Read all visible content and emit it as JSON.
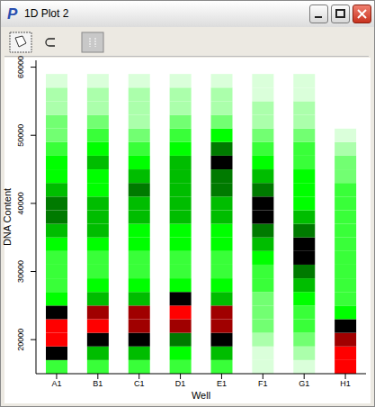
{
  "window_title": "1D Plot 2",
  "icon_letter": "P",
  "chart_data": {
    "type": "heatmap",
    "x_label": "Well",
    "y_label": "DNA Content",
    "categories": [
      "A1",
      "B1",
      "C1",
      "D1",
      "E1",
      "F1",
      "G1",
      "H1"
    ],
    "bins": [
      15000,
      17000,
      19000,
      21000,
      23000,
      25000,
      27000,
      29000,
      31000,
      33000,
      35000,
      37000,
      39000,
      41000,
      43000,
      45000,
      47000,
      49000,
      51000,
      53000,
      55000,
      57000,
      59000
    ],
    "cells": [
      [
        4,
        8,
        10,
        10,
        8,
        5,
        4,
        4,
        4,
        5,
        6,
        7,
        7,
        6,
        5,
        5,
        4,
        3,
        3,
        2,
        2,
        1
      ],
      [
        4,
        6,
        8,
        10,
        9,
        6,
        5,
        4,
        4,
        5,
        6,
        6,
        6,
        5,
        5,
        6,
        5,
        4,
        3,
        2,
        2,
        1
      ],
      [
        4,
        6,
        8,
        9,
        9,
        6,
        5,
        4,
        4,
        5,
        5,
        6,
        6,
        7,
        6,
        5,
        4,
        3,
        2,
        2,
        2,
        1
      ],
      [
        4,
        5,
        7,
        9,
        10,
        8,
        5,
        4,
        4,
        5,
        5,
        6,
        6,
        6,
        6,
        6,
        5,
        4,
        3,
        2,
        2,
        1
      ],
      [
        4,
        6,
        8,
        9,
        9,
        6,
        5,
        4,
        4,
        5,
        5,
        6,
        6,
        7,
        7,
        8,
        7,
        5,
        3,
        2,
        2,
        1
      ],
      [
        1,
        1,
        2,
        3,
        3,
        3,
        4,
        4,
        5,
        6,
        7,
        8,
        8,
        7,
        6,
        5,
        4,
        3,
        2,
        2,
        1,
        1
      ],
      [
        1,
        2,
        3,
        4,
        4,
        5,
        6,
        7,
        8,
        8,
        7,
        6,
        5,
        5,
        5,
        4,
        4,
        3,
        2,
        2,
        1,
        1
      ],
      [
        10,
        10,
        9,
        8,
        5,
        4,
        4,
        4,
        4,
        4,
        4,
        4,
        4,
        4,
        3,
        3,
        2,
        1,
        0,
        0,
        0,
        0
      ]
    ],
    "zlim": [
      0,
      10
    ],
    "ylim": [
      15000,
      61000
    ],
    "yticks": [
      20000,
      30000,
      40000,
      50000,
      60000
    ]
  }
}
